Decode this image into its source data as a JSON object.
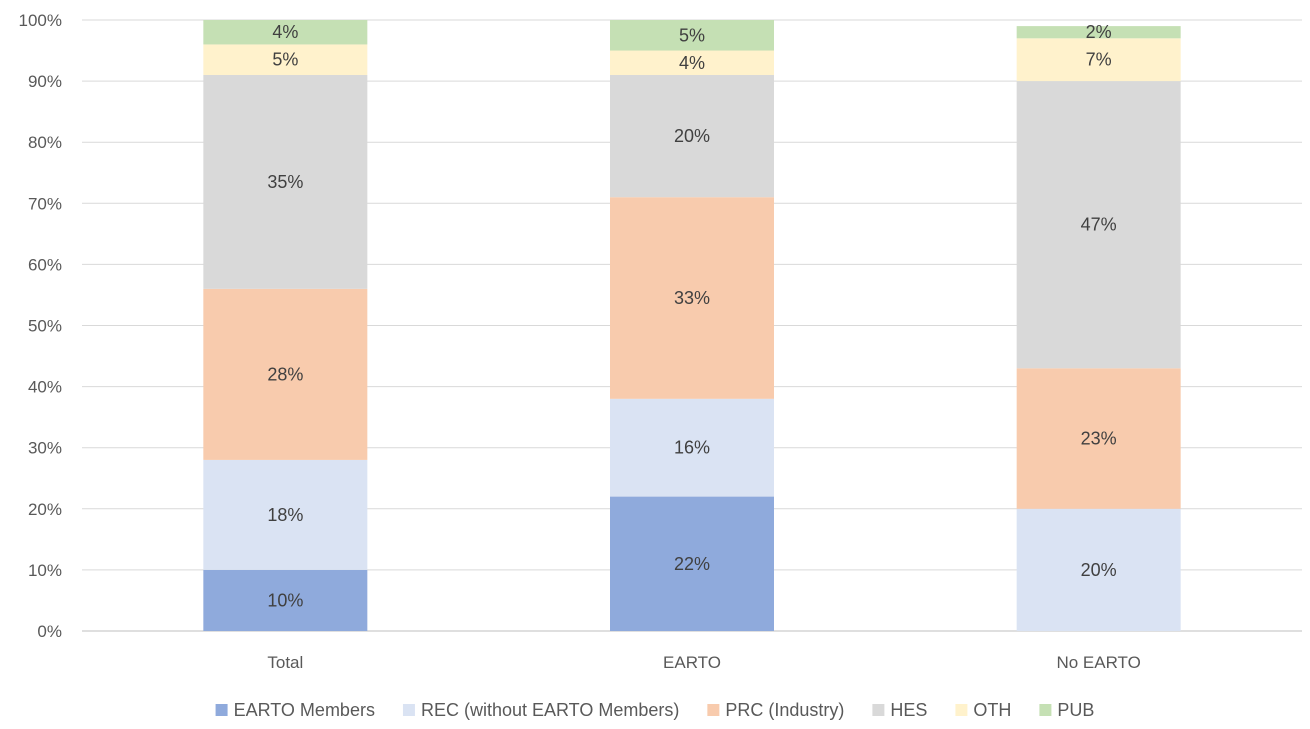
{
  "chart_data": {
    "type": "bar",
    "stacked": true,
    "percent": true,
    "categories": [
      "Total",
      "EARTO",
      "No EARTO"
    ],
    "series": [
      {
        "name": "EARTO Members",
        "color": "#8faadc",
        "values": [
          10,
          22,
          0
        ],
        "labels": [
          "10%",
          "22%",
          ""
        ]
      },
      {
        "name": "REC (without EARTO Members)",
        "color": "#dae3f3",
        "values": [
          18,
          16,
          20
        ],
        "labels": [
          "18%",
          "16%",
          "20%"
        ]
      },
      {
        "name": "PRC (Industry)",
        "color": "#f8cbad",
        "values": [
          28,
          33,
          23
        ],
        "labels": [
          "28%",
          "33%",
          "23%"
        ]
      },
      {
        "name": "HES",
        "color": "#d9d9d9",
        "values": [
          35,
          20,
          47
        ],
        "labels": [
          "35%",
          "20%",
          "47%"
        ]
      },
      {
        "name": "OTH",
        "color": "#fff2cc",
        "values": [
          5,
          4,
          7
        ],
        "labels": [
          "5%",
          "4%",
          "7%"
        ]
      },
      {
        "name": "PUB",
        "color": "#c5e0b4",
        "values": [
          4,
          5,
          2
        ],
        "labels": [
          "4%",
          "5%",
          "2%"
        ]
      }
    ],
    "ylim": [
      0,
      100
    ],
    "yticks": [
      "0%",
      "10%",
      "20%",
      "30%",
      "40%",
      "50%",
      "60%",
      "70%",
      "80%",
      "90%",
      "100%"
    ],
    "title": "",
    "xlabel": "",
    "ylabel": "",
    "grid": true,
    "legend_position": "bottom"
  }
}
